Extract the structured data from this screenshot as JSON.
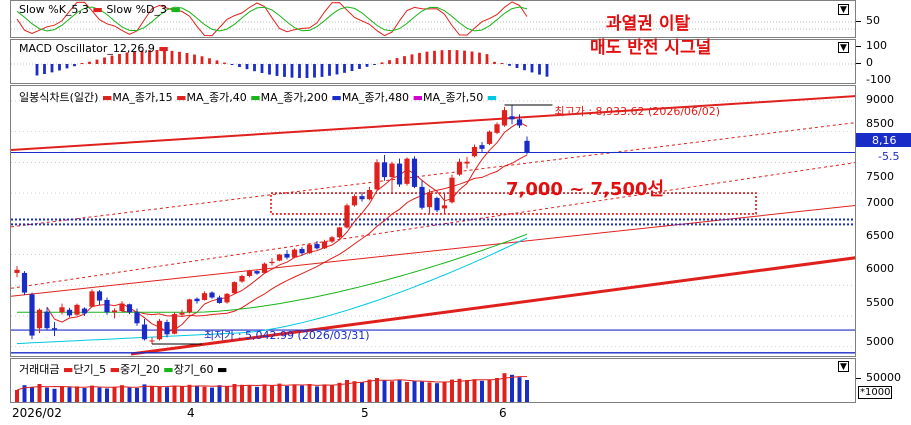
{
  "colors": {
    "up": "#e0201c",
    "down": "#1a2cc8",
    "grid": "#b0b0b0",
    "ma15": "#e0201c",
    "ma40": "#e0201c",
    "ma200": "#18b418",
    "ma480": "#1a2cc8",
    "ma50": "#00c8e0"
  },
  "stochastic": {
    "title_k": "Slow %K_5,3",
    "title_d": "Slow %D_3",
    "tick_label": "50"
  },
  "macd": {
    "title": "MACD Oscillator_12,26,9",
    "tick_labels": [
      "100",
      "0",
      "-100"
    ]
  },
  "annotations": {
    "line1": "과열권 이탈",
    "line2": "매도 반전 시그널",
    "zone": "7,000 ~ 7,500선"
  },
  "price": {
    "title": "일봉식차트(일간)",
    "legend": [
      "MA_종가,15",
      "MA_종가,40",
      "MA_종가,200",
      "MA_종가,480",
      "MA_종가,50"
    ],
    "high_label": "최고가 : 8,933.62 (2026/06/02)",
    "low_label": "최저가 : 5,042.99 (2026/03/31)",
    "current_price": "8,16",
    "current_change": "-5.5",
    "y_ticks": [
      "9000",
      "8500",
      "8000",
      "7500",
      "7000",
      "6500",
      "6000",
      "5500",
      "5000"
    ]
  },
  "volume": {
    "title": "거래대금",
    "legend": [
      "단기_5",
      "중기_20",
      "장기_60"
    ],
    "tick_label": "50000",
    "unit_label": "*1000"
  },
  "x_labels": [
    "2026/02",
    "4",
    "5",
    "6"
  ],
  "chart_data": {
    "type": "candlestick",
    "title": "일봉식차트(일간)",
    "y_axis_ticks": [
      5000,
      5500,
      6000,
      6500,
      7000,
      7500,
      8000,
      8500,
      9000
    ],
    "ylim": [
      4880,
      9080
    ],
    "x_axis_labels": [
      "2026/02",
      "4",
      "5",
      "6"
    ],
    "highest": {
      "value": 8933.62,
      "date": "2026/06/02"
    },
    "lowest": {
      "value": 5042.99,
      "date": "2026/03/31"
    },
    "current": 8160,
    "horizontal_lines": [
      8160,
      5270,
      4900,
      7070,
      6990
    ],
    "resistance_zone": [
      7000,
      7500
    ],
    "moving_averages": [
      "MA_종가,15",
      "MA_종가,40",
      "MA_종가,200",
      "MA_종가,480",
      "MA_종가,50"
    ],
    "candles": [
      {
        "o": 6200,
        "h": 6310,
        "l": 6130,
        "c": 6250
      },
      {
        "o": 6200,
        "h": 6230,
        "l": 5840,
        "c": 5880
      },
      {
        "o": 5850,
        "h": 5880,
        "l": 5120,
        "c": 5180
      },
      {
        "o": 5300,
        "h": 5620,
        "l": 5220,
        "c": 5600
      },
      {
        "o": 5570,
        "h": 5640,
        "l": 5260,
        "c": 5300
      },
      {
        "o": 5300,
        "h": 5400,
        "l": 5170,
        "c": 5280
      },
      {
        "o": 5560,
        "h": 5700,
        "l": 5520,
        "c": 5640
      },
      {
        "o": 5600,
        "h": 5630,
        "l": 5480,
        "c": 5510
      },
      {
        "o": 5520,
        "h": 5700,
        "l": 5500,
        "c": 5680
      },
      {
        "o": 5620,
        "h": 5640,
        "l": 5500,
        "c": 5540
      },
      {
        "o": 5650,
        "h": 5930,
        "l": 5640,
        "c": 5900
      },
      {
        "o": 5900,
        "h": 5920,
        "l": 5680,
        "c": 5750
      },
      {
        "o": 5760,
        "h": 5800,
        "l": 5520,
        "c": 5560
      },
      {
        "o": 5560,
        "h": 5620,
        "l": 5460,
        "c": 5590
      },
      {
        "o": 5580,
        "h": 5740,
        "l": 5560,
        "c": 5700
      },
      {
        "o": 5690,
        "h": 5700,
        "l": 5530,
        "c": 5560
      },
      {
        "o": 5560,
        "h": 5620,
        "l": 5340,
        "c": 5380
      },
      {
        "o": 5360,
        "h": 5450,
        "l": 5100,
        "c": 5120
      },
      {
        "o": 5090,
        "h": 5150,
        "l": 5043,
        "c": 5100
      },
      {
        "o": 5120,
        "h": 5450,
        "l": 5100,
        "c": 5420
      },
      {
        "o": 5400,
        "h": 5440,
        "l": 5150,
        "c": 5200
      },
      {
        "o": 5210,
        "h": 5560,
        "l": 5200,
        "c": 5530
      },
      {
        "o": 5520,
        "h": 5600,
        "l": 5480,
        "c": 5550
      },
      {
        "o": 5560,
        "h": 5780,
        "l": 5540,
        "c": 5770
      },
      {
        "o": 5780,
        "h": 5800,
        "l": 5700,
        "c": 5740
      },
      {
        "o": 5760,
        "h": 5900,
        "l": 5750,
        "c": 5870
      },
      {
        "o": 5880,
        "h": 5900,
        "l": 5780,
        "c": 5800
      },
      {
        "o": 5800,
        "h": 5830,
        "l": 5700,
        "c": 5710
      },
      {
        "o": 5720,
        "h": 5870,
        "l": 5700,
        "c": 5860
      },
      {
        "o": 5870,
        "h": 6060,
        "l": 5860,
        "c": 6050
      },
      {
        "o": 6060,
        "h": 6170,
        "l": 6040,
        "c": 6150
      },
      {
        "o": 6150,
        "h": 6250,
        "l": 6130,
        "c": 6230
      },
      {
        "o": 6230,
        "h": 6240,
        "l": 6170,
        "c": 6190
      },
      {
        "o": 6200,
        "h": 6370,
        "l": 6190,
        "c": 6350
      },
      {
        "o": 6360,
        "h": 6440,
        "l": 6320,
        "c": 6380
      },
      {
        "o": 6400,
        "h": 6510,
        "l": 6390,
        "c": 6500
      },
      {
        "o": 6510,
        "h": 6570,
        "l": 6420,
        "c": 6450
      },
      {
        "o": 6450,
        "h": 6600,
        "l": 6440,
        "c": 6580
      },
      {
        "o": 6590,
        "h": 6620,
        "l": 6490,
        "c": 6520
      },
      {
        "o": 6520,
        "h": 6680,
        "l": 6510,
        "c": 6660
      },
      {
        "o": 6670,
        "h": 6720,
        "l": 6580,
        "c": 6600
      },
      {
        "o": 6600,
        "h": 6740,
        "l": 6590,
        "c": 6710
      },
      {
        "o": 6710,
        "h": 6800,
        "l": 6690,
        "c": 6780
      },
      {
        "o": 6780,
        "h": 6950,
        "l": 6760,
        "c": 6940
      },
      {
        "o": 6940,
        "h": 7330,
        "l": 6920,
        "c": 7300
      },
      {
        "o": 7300,
        "h": 7480,
        "l": 7280,
        "c": 7450
      },
      {
        "o": 7450,
        "h": 7520,
        "l": 7360,
        "c": 7400
      },
      {
        "o": 7400,
        "h": 7600,
        "l": 7380,
        "c": 7550
      },
      {
        "o": 7560,
        "h": 8050,
        "l": 7540,
        "c": 8000
      },
      {
        "o": 8000,
        "h": 8120,
        "l": 7700,
        "c": 7760
      },
      {
        "o": 7760,
        "h": 8010,
        "l": 7500,
        "c": 7980
      },
      {
        "o": 7980,
        "h": 8060,
        "l": 7600,
        "c": 7640
      },
      {
        "o": 7650,
        "h": 8080,
        "l": 7620,
        "c": 8060
      },
      {
        "o": 8060,
        "h": 8100,
        "l": 7580,
        "c": 7600
      },
      {
        "o": 7600,
        "h": 7700,
        "l": 7230,
        "c": 7260
      },
      {
        "o": 7270,
        "h": 7560,
        "l": 7160,
        "c": 7500
      },
      {
        "o": 7420,
        "h": 7440,
        "l": 7190,
        "c": 7220
      },
      {
        "o": 7250,
        "h": 7500,
        "l": 7160,
        "c": 7300
      },
      {
        "o": 7350,
        "h": 7800,
        "l": 7330,
        "c": 7750
      },
      {
        "o": 7800,
        "h": 8060,
        "l": 7780,
        "c": 8010
      },
      {
        "o": 7980,
        "h": 8090,
        "l": 7900,
        "c": 8010
      },
      {
        "o": 8100,
        "h": 8290,
        "l": 8080,
        "c": 8250
      },
      {
        "o": 8280,
        "h": 8330,
        "l": 8170,
        "c": 8220
      },
      {
        "o": 8300,
        "h": 8520,
        "l": 8280,
        "c": 8500
      },
      {
        "o": 8480,
        "h": 8650,
        "l": 8460,
        "c": 8620
      },
      {
        "o": 8600,
        "h": 8900,
        "l": 8580,
        "c": 8850
      },
      {
        "o": 8750,
        "h": 8934,
        "l": 8620,
        "c": 8700
      },
      {
        "o": 8700,
        "h": 8780,
        "l": 8560,
        "c": 8600
      },
      {
        "o": 8350,
        "h": 8420,
        "l": 8130,
        "c": 8160
      }
    ],
    "volume": [
      30000,
      42000,
      38000,
      45000,
      36000,
      33000,
      40000,
      37000,
      39000,
      35000,
      41000,
      36000,
      34000,
      38000,
      42000,
      36000,
      35000,
      44000,
      40000,
      38000,
      37000,
      41000,
      39000,
      43000,
      40000,
      38000,
      36000,
      42000,
      39000,
      45000,
      43000,
      41000,
      38000,
      44000,
      42000,
      46000,
      40000,
      43000,
      41000,
      45000,
      39000,
      44000,
      42000,
      48000,
      55000,
      52000,
      50000,
      56000,
      60000,
      54000,
      52000,
      55000,
      50000,
      53000,
      51000,
      49000,
      47000,
      50000,
      56000,
      58000,
      55000,
      57000,
      53000,
      56000,
      60000,
      72000,
      68000,
      62000,
      55000
    ]
  }
}
